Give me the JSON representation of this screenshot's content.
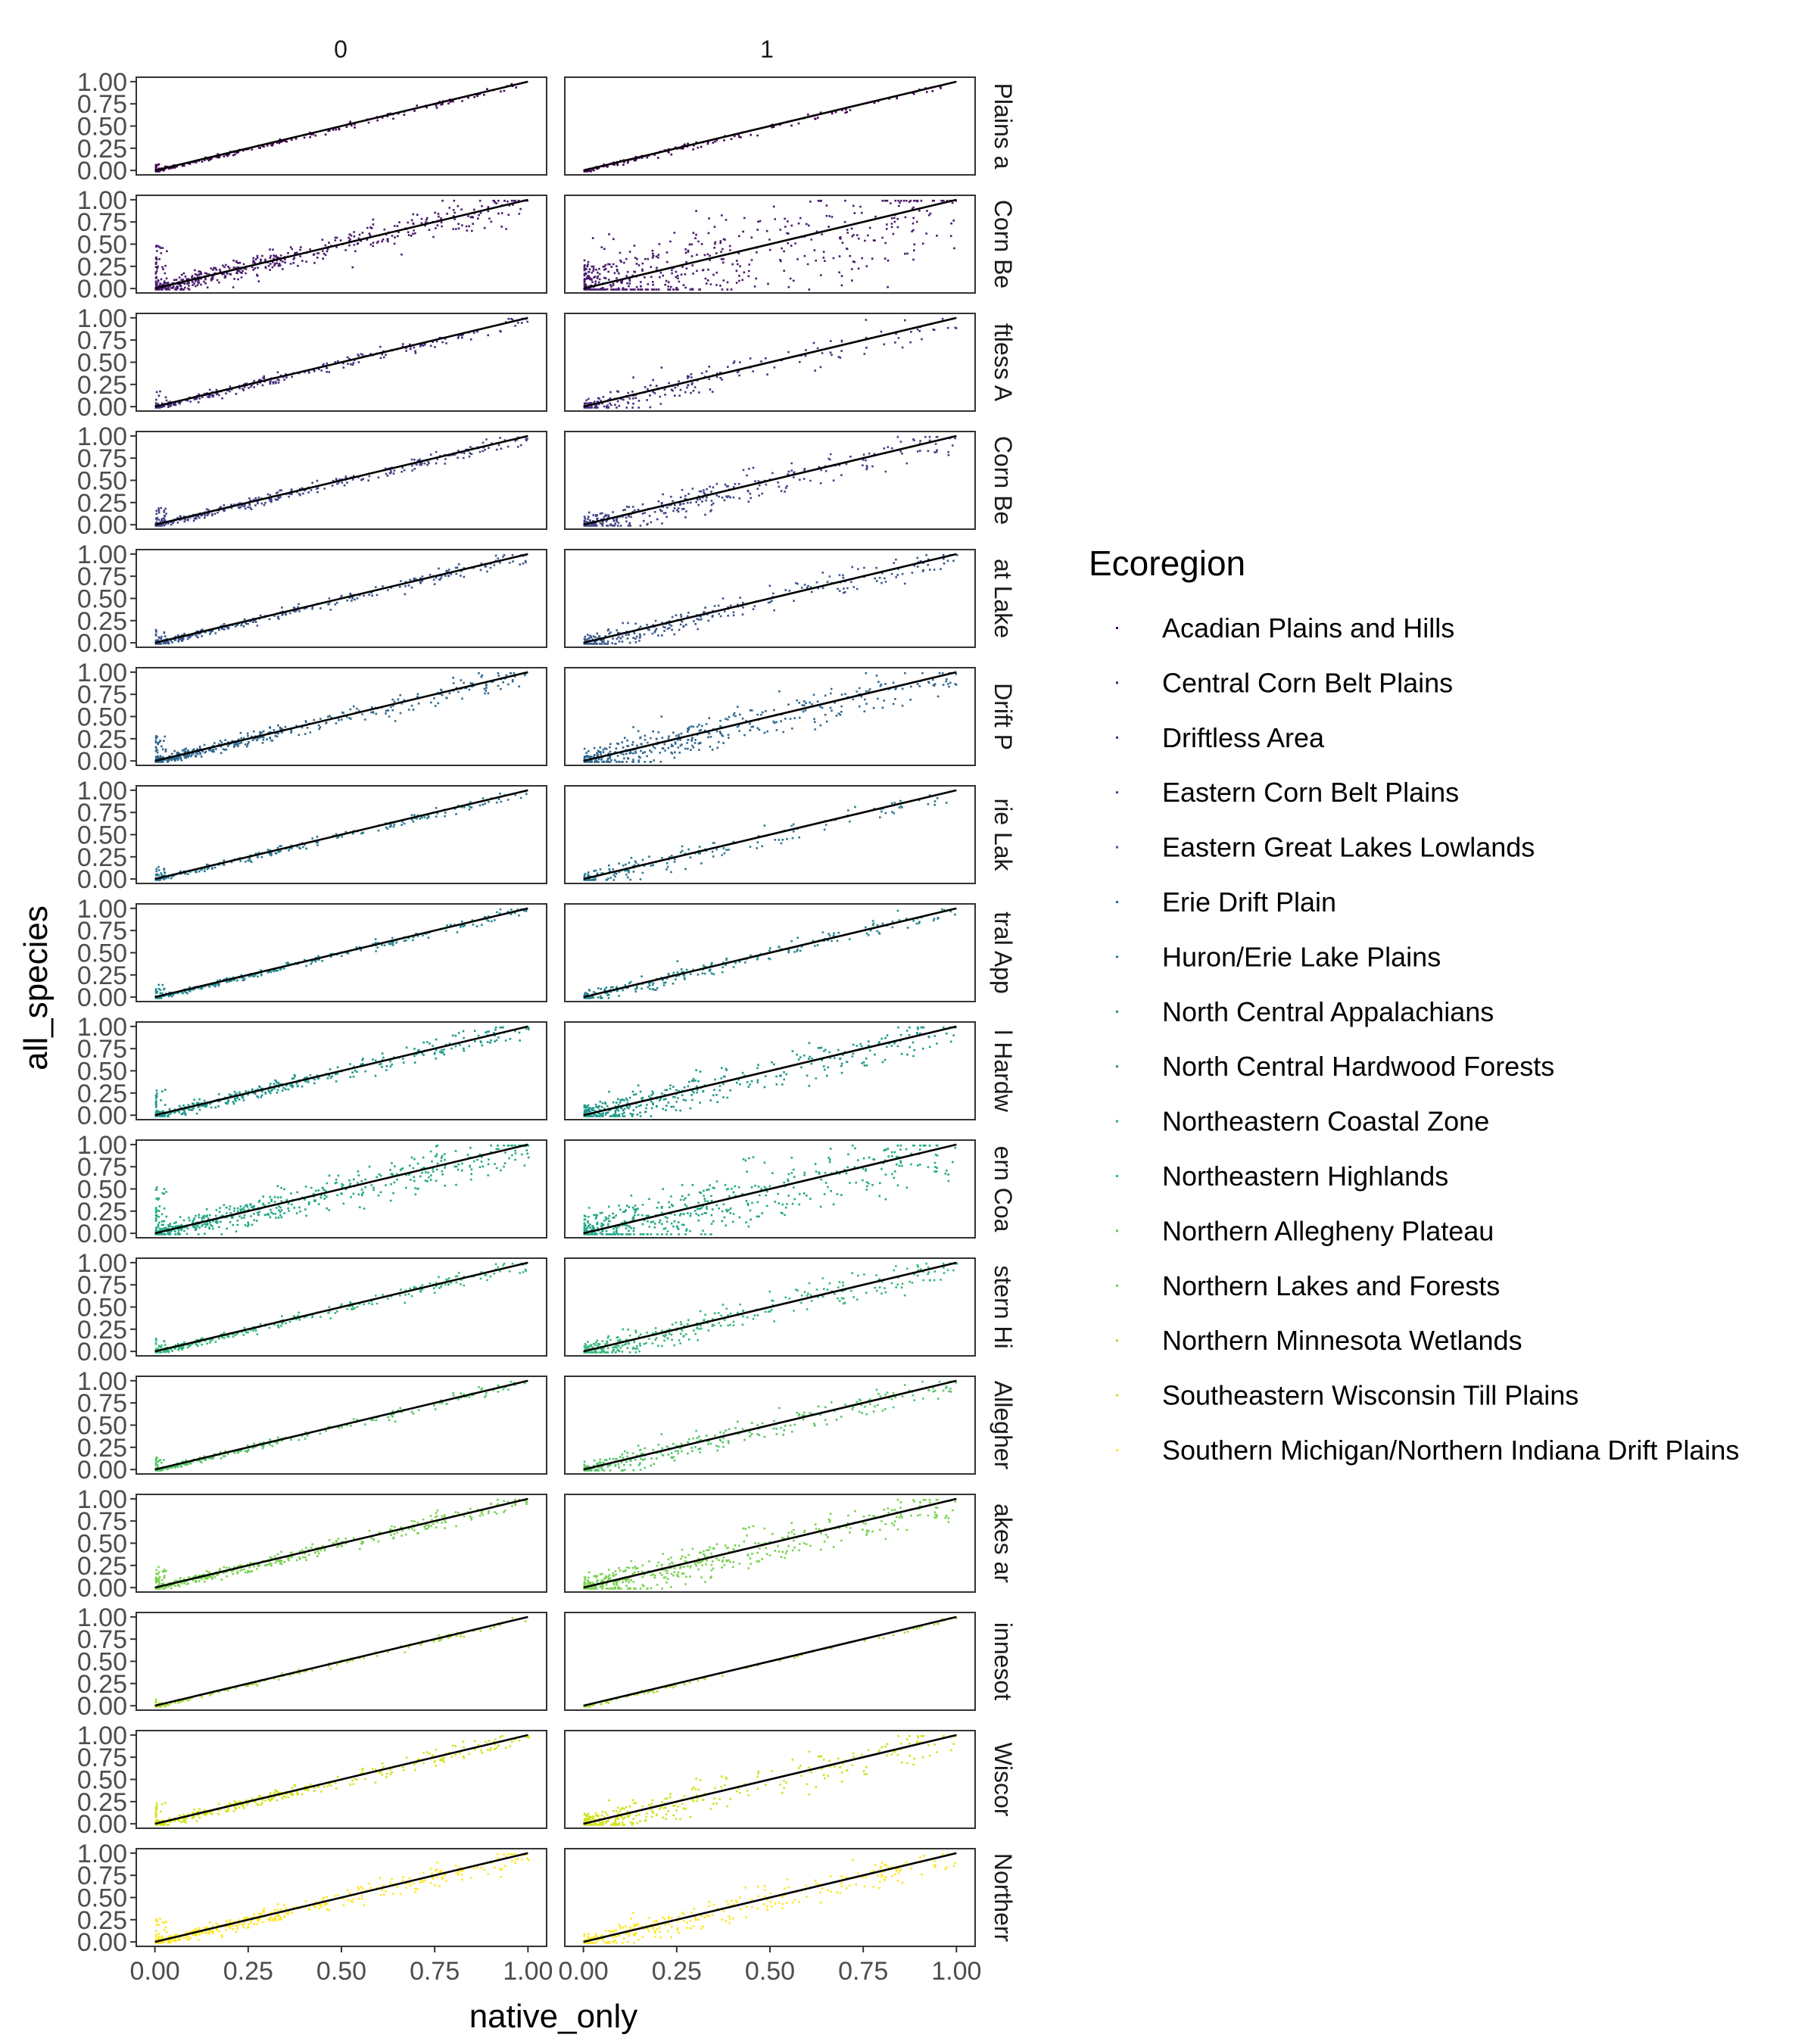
{
  "chart_data": {
    "type": "scatter",
    "facet_columns": [
      "0",
      "1"
    ],
    "facet_rows": [
      "Acadian Plains and Hills",
      "Central Corn Belt Plains",
      "Driftless Area",
      "Eastern Corn Belt Plains",
      "Eastern Great Lakes Lowlands",
      "Erie Drift Plain",
      "Huron/Erie Lake Plains",
      "North Central Appalachians",
      "North Central Hardwood Forests",
      "Northeastern Coastal Zone",
      "Northeastern Highlands",
      "Northern Allegheny Plateau",
      "Northern Lakes and Forests",
      "Northern Minnesota Wetlands",
      "Southeastern Wisconsin Till Plains",
      "Southern Michigan/Northern Indiana Drift Plains"
    ],
    "row_strip_labels": [
      "Plains a",
      "Corn Be",
      "ftless A",
      "Corn Be",
      "at Lake",
      "Drift P",
      "rie Lak",
      "tral App",
      "l Hardw",
      "ern Coa",
      "stern Hi",
      "Allegher",
      "akes ar",
      "innesot",
      "Wiscor",
      "Northerr"
    ],
    "xlabel": "native_only",
    "ylabel": "all_species",
    "xlim": [
      0,
      1
    ],
    "ylim": [
      0,
      1
    ],
    "x_ticks": [
      "0.00",
      "0.25",
      "0.50",
      "0.75",
      "1.00"
    ],
    "y_ticks": [
      "0.00",
      "0.25",
      "0.50",
      "0.75",
      "1.00"
    ],
    "reference_line": {
      "slope": 1,
      "intercept": 0,
      "color": "#000000"
    },
    "legend": {
      "title": "Ecoregion",
      "position": "right",
      "entries": [
        {
          "name": "Acadian Plains and Hills",
          "color": "#440154"
        },
        {
          "name": "Central Corn Belt Plains",
          "color": "#481a6c"
        },
        {
          "name": "Driftless Area",
          "color": "#472f7d"
        },
        {
          "name": "Eastern Corn Belt Plains",
          "color": "#414487"
        },
        {
          "name": "Eastern Great Lakes Lowlands",
          "color": "#39568c"
        },
        {
          "name": "Erie Drift Plain",
          "color": "#31688e"
        },
        {
          "name": "Huron/Erie Lake Plains",
          "color": "#2a788e"
        },
        {
          "name": "North Central Appalachians",
          "color": "#23888e"
        },
        {
          "name": "North Central Hardwood Forests",
          "color": "#1f988b"
        },
        {
          "name": "Northeastern Coastal Zone",
          "color": "#22a884"
        },
        {
          "name": "Northeastern Highlands",
          "color": "#35b779"
        },
        {
          "name": "Northern Allegheny Plateau",
          "color": "#54c568"
        },
        {
          "name": "Northern Lakes and Forests",
          "color": "#7ad151"
        },
        {
          "name": "Northern Minnesota Wetlands",
          "color": "#a5db36"
        },
        {
          "name": "Southeastern Wisconsin Till Plains",
          "color": "#d2e21b"
        },
        {
          "name": "Southern Michigan/Northern Indiana Drift Plains",
          "color": "#fde725"
        }
      ]
    },
    "scatter_density": {
      "col0": [
        0.3,
        0.9,
        0.4,
        0.55,
        0.5,
        0.75,
        0.35,
        0.45,
        0.65,
        0.95,
        0.5,
        0.4,
        0.7,
        0.2,
        0.6,
        0.75
      ],
      "col1": [
        0.2,
        1.0,
        0.3,
        0.55,
        0.45,
        0.7,
        0.25,
        0.35,
        0.7,
        0.95,
        0.6,
        0.45,
        0.85,
        0.08,
        0.55,
        0.55
      ]
    },
    "scatter_spread": {
      "col0": [
        0.02,
        0.1,
        0.04,
        0.04,
        0.04,
        0.06,
        0.03,
        0.03,
        0.06,
        0.12,
        0.04,
        0.03,
        0.05,
        0.02,
        0.05,
        0.06
      ],
      "col1": [
        0.03,
        0.4,
        0.12,
        0.12,
        0.1,
        0.15,
        0.1,
        0.07,
        0.15,
        0.25,
        0.12,
        0.1,
        0.15,
        0.02,
        0.15,
        0.12
      ]
    },
    "grid": false
  }
}
